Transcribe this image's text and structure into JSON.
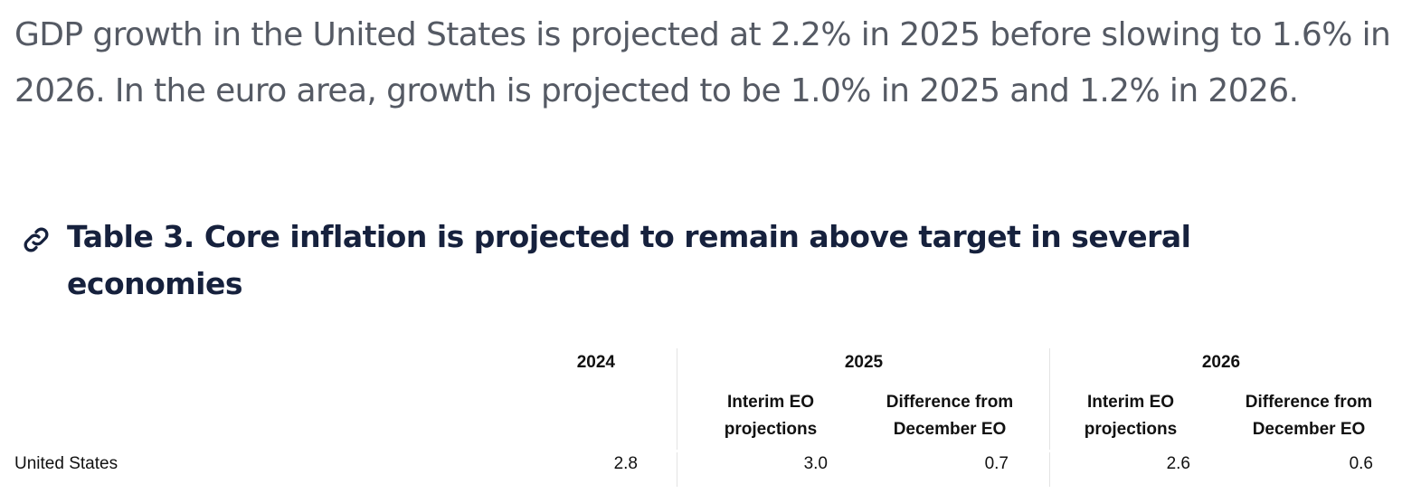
{
  "paragraph": "GDP growth in the United States is projected at 2.2% in 2025 before slowing to 1.6% in 2026. In the euro area, growth is projected to be 1.0% in 2025 and 1.2% in 2026.",
  "heading": {
    "icon": "link-icon",
    "title": "Table 3. Core inflation is projected to remain above target in several economies"
  },
  "table": {
    "years": [
      "2024",
      "2025",
      "2026"
    ],
    "subheaders": {
      "interim": "Interim EO projections",
      "difference": "Difference from December EO"
    },
    "rows": [
      {
        "country": "United States",
        "y2024": "2.8",
        "y2025_interim": "3.0",
        "y2025_diff": "0.7",
        "y2026_interim": "2.6",
        "y2026_diff": "0.6"
      }
    ]
  },
  "colors": {
    "paragraph": "#555a64",
    "heading": "#16213d"
  }
}
